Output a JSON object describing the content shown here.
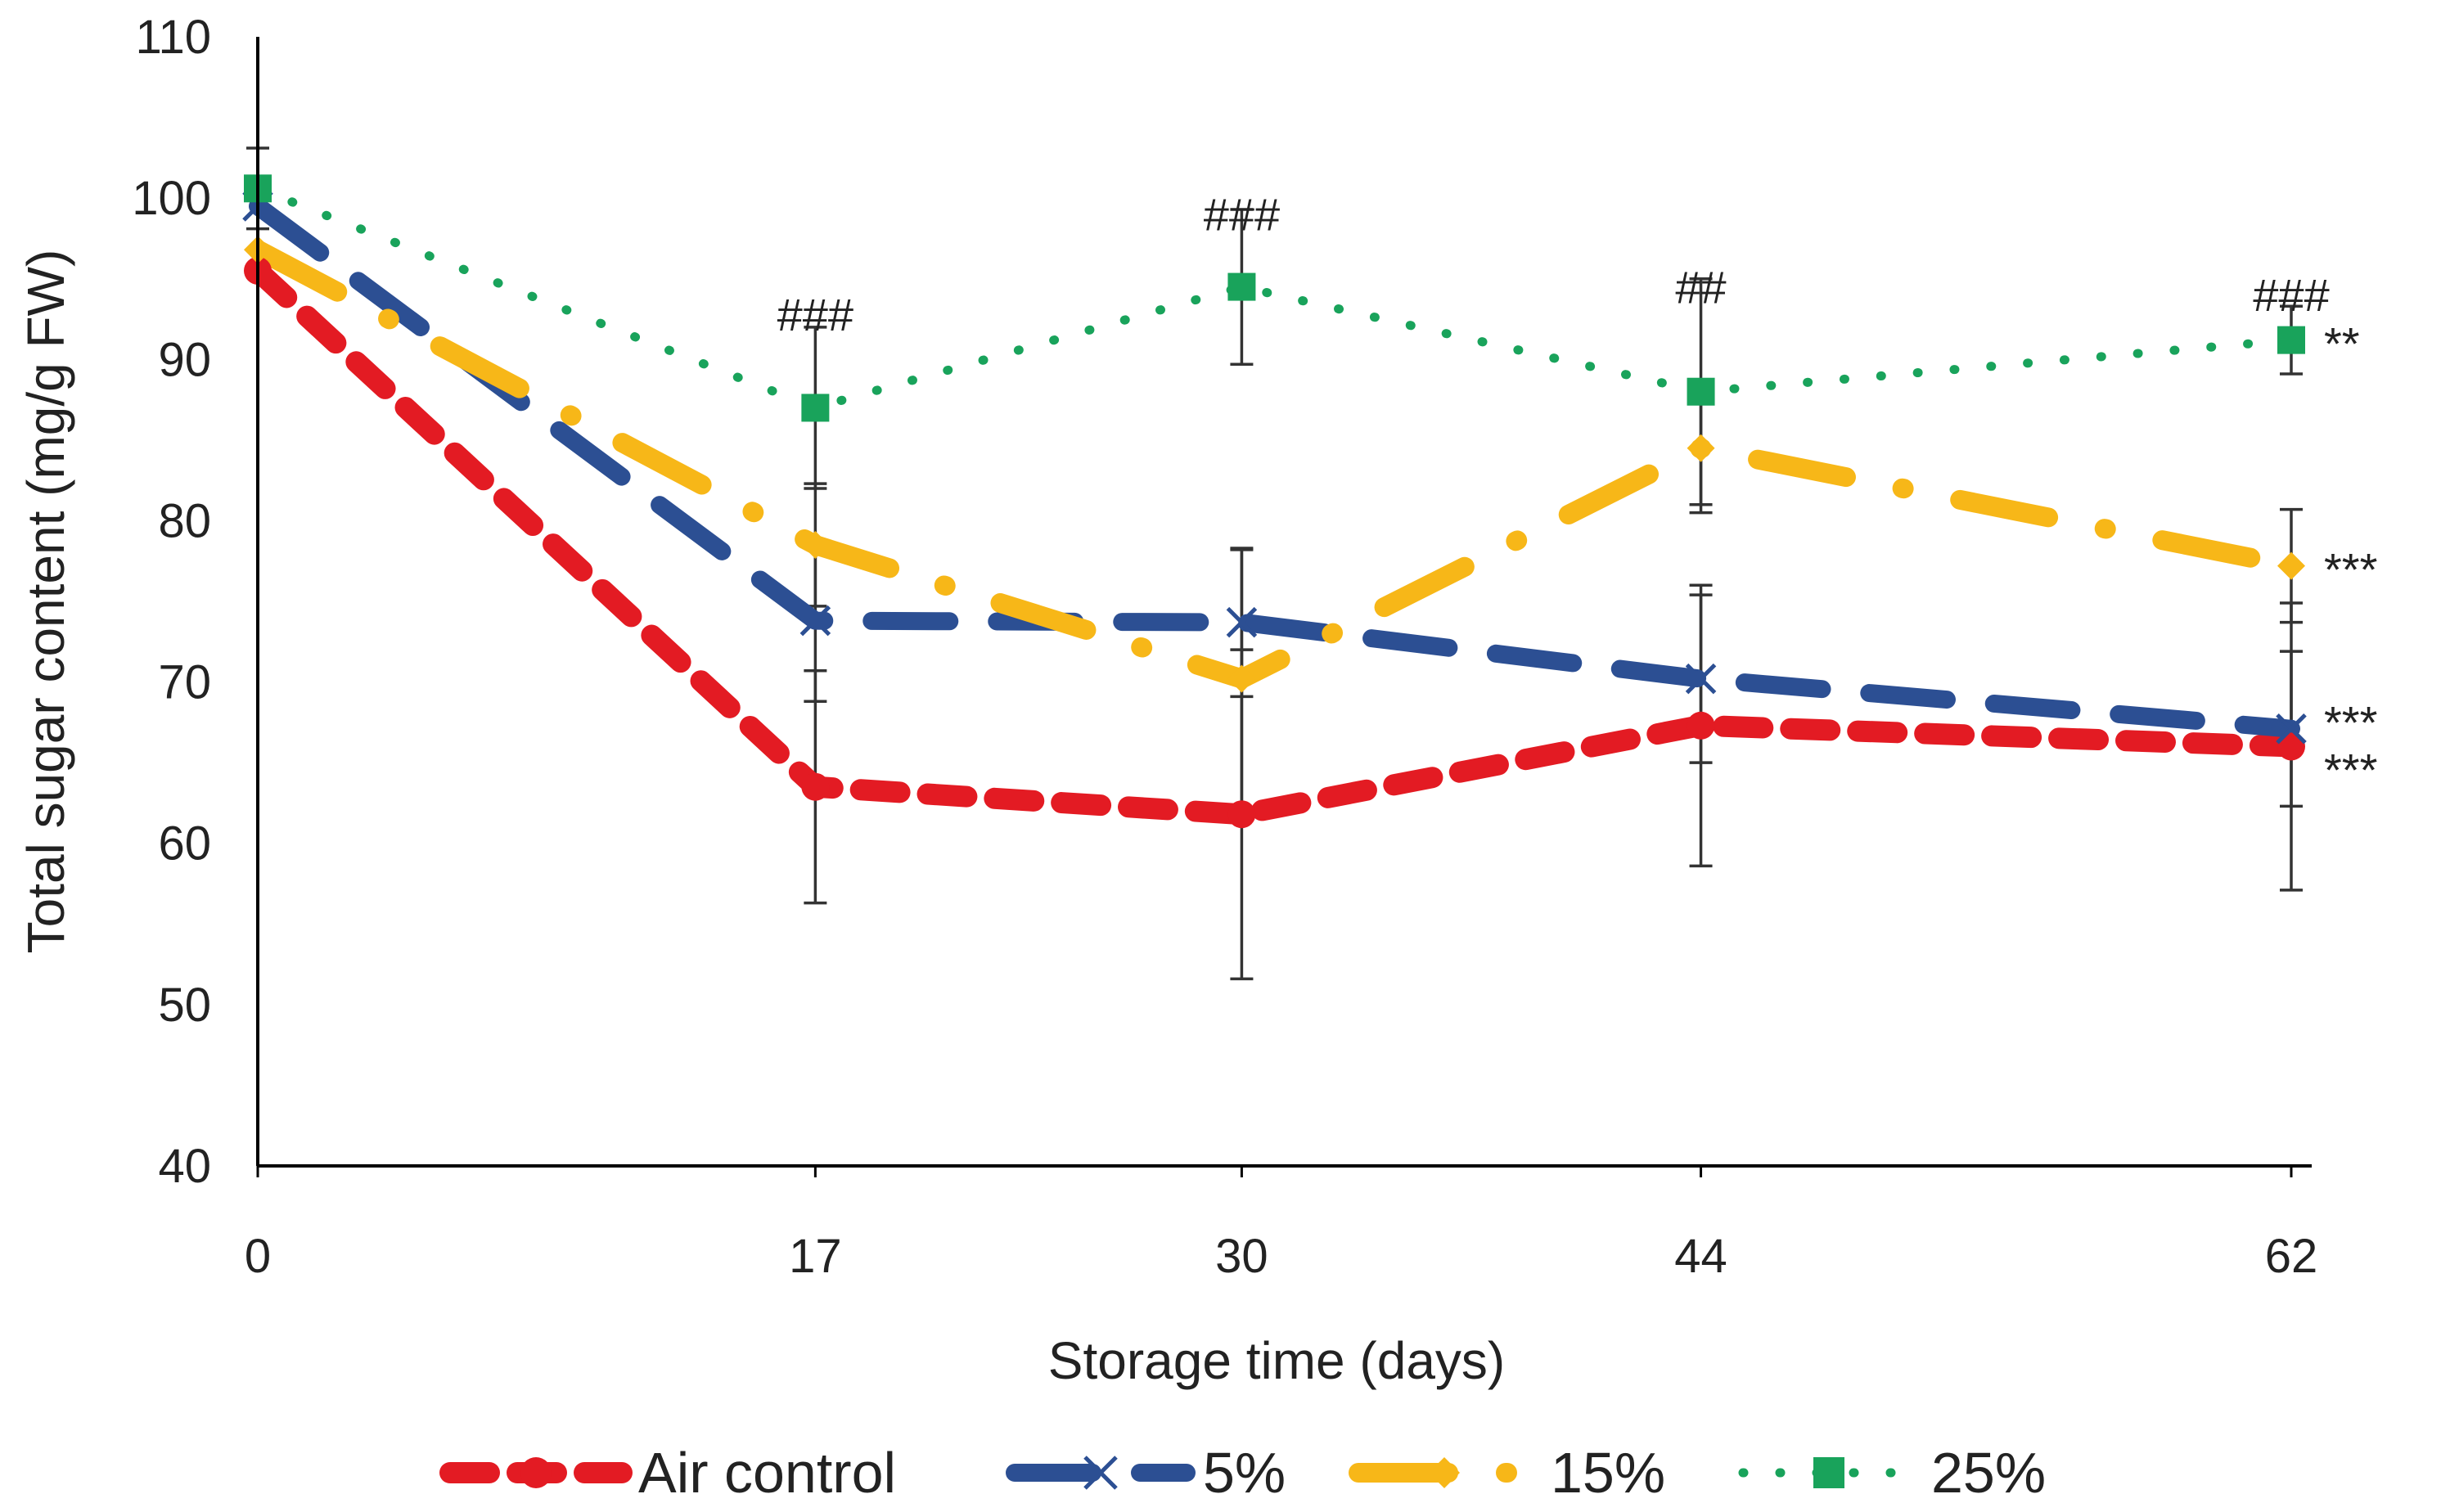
{
  "chart_data": {
    "type": "line",
    "title": "",
    "xlabel": "Storage time (days)",
    "ylabel": "Total sugar content (mg/g FW)",
    "x": [
      "0",
      "17",
      "30",
      "44",
      "62"
    ],
    "x_values": [
      0,
      17,
      30,
      44,
      62
    ],
    "yticks": [
      "40",
      "50",
      "60",
      "70",
      "80",
      "90",
      "100",
      "110"
    ],
    "ylim": [
      40,
      110
    ],
    "grid": false,
    "legend_position": "bottom",
    "series": [
      {
        "name": "Air control",
        "color": "#e31b23",
        "line_style": "dash",
        "marker": "circle",
        "values": [
          95.5,
          63.5,
          61.8,
          67.3,
          66.0
        ],
        "errors": [
          0,
          7.2,
          10.2,
          8.7,
          8.9
        ],
        "end_label": "***"
      },
      {
        "name": "5%",
        "color": "#2c4f93",
        "line_style": "long-dash",
        "marker": "x",
        "values": [
          99.5,
          73.8,
          73.7,
          70.2,
          67.1
        ],
        "errors": [
          0,
          5.0,
          4.6,
          5.2,
          4.8
        ],
        "end_label": "***"
      },
      {
        "name": "15%",
        "color": "#f7b718",
        "line_style": "long-dash-dot",
        "marker": "diamond",
        "values": [
          96.8,
          78.5,
          70.2,
          84.5,
          77.2
        ],
        "errors": [
          0,
          3.8,
          8.0,
          4.0,
          3.5
        ],
        "end_label": "***"
      },
      {
        "name": "25%",
        "color": "#19a35b",
        "line_style": "dot",
        "marker": "square",
        "values": [
          100.6,
          87.0,
          94.5,
          88.0,
          91.2
        ],
        "errors": [
          2.5,
          5.0,
          4.8,
          7.0,
          2.1
        ],
        "end_label": "**"
      }
    ],
    "annotations": [
      {
        "x": 17,
        "y": 91.8,
        "text": "###"
      },
      {
        "x": 30,
        "y": 98.0,
        "text": "###"
      },
      {
        "x": 44,
        "y": 93.5,
        "text": "##"
      },
      {
        "x": 62,
        "y": 93.0,
        "text": "###"
      }
    ]
  }
}
